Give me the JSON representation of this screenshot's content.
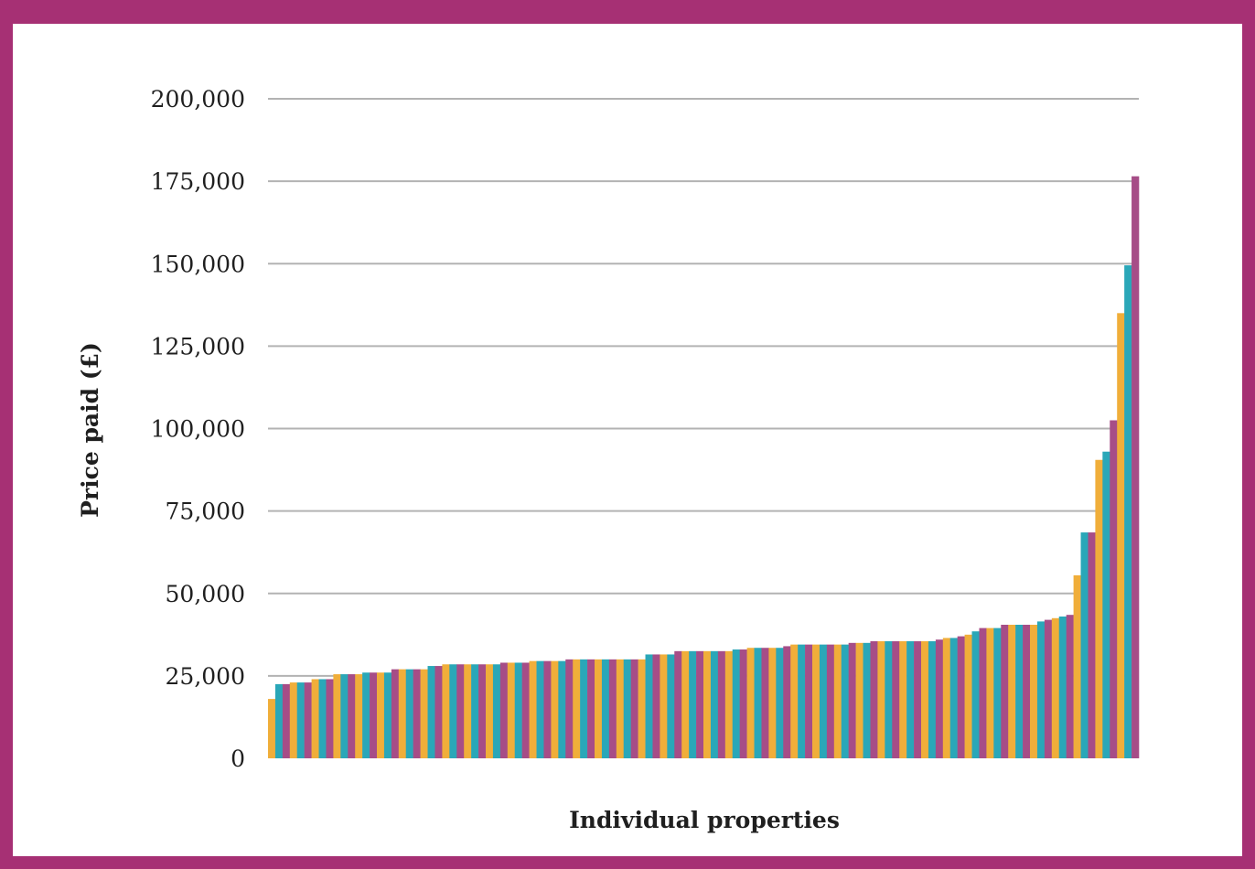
{
  "chart_data": {
    "type": "bar",
    "title": "",
    "xlabel": "Individual properties",
    "ylabel": "Price paid (£)",
    "ylim": [
      0,
      200000
    ],
    "yticks": [
      0,
      25000,
      50000,
      75000,
      100000,
      125000,
      150000,
      175000,
      200000
    ],
    "ytick_labels": [
      "0",
      "25,000",
      "50,000",
      "75,000",
      "100,000",
      "125,000",
      "150,000",
      "175,000",
      "200,000"
    ],
    "grid": true,
    "legend": "none",
    "colors": [
      "#f0ae3a",
      "#2aa7b8",
      "#a64d87"
    ],
    "values": [
      18000,
      22500,
      22500,
      23000,
      23000,
      23000,
      24000,
      24000,
      24000,
      25500,
      25500,
      25500,
      25500,
      26000,
      26000,
      26000,
      26000,
      27000,
      27000,
      27000,
      27000,
      27000,
      28000,
      28000,
      28500,
      28500,
      28500,
      28500,
      28500,
      28500,
      28500,
      28500,
      29000,
      29000,
      29000,
      29000,
      29500,
      29500,
      29500,
      29500,
      29500,
      30000,
      30000,
      30000,
      30000,
      30000,
      30000,
      30000,
      30000,
      30000,
      30000,
      30000,
      31500,
      31500,
      31500,
      31500,
      32500,
      32500,
      32500,
      32500,
      32500,
      32500,
      32500,
      32500,
      33000,
      33000,
      33500,
      33500,
      33500,
      33500,
      33500,
      34000,
      34500,
      34500,
      34500,
      34500,
      34500,
      34500,
      34500,
      34500,
      35000,
      35000,
      35000,
      35500,
      35500,
      35500,
      35500,
      35500,
      35500,
      35500,
      35500,
      35500,
      36000,
      36500,
      36500,
      37000,
      37500,
      38500,
      39500,
      39500,
      39500,
      40500,
      40500,
      40500,
      40500,
      40500,
      41500,
      42000,
      42500,
      43000,
      43500,
      55500,
      68500,
      68500,
      90500,
      93000,
      102500,
      135000,
      149500,
      176500
    ]
  }
}
